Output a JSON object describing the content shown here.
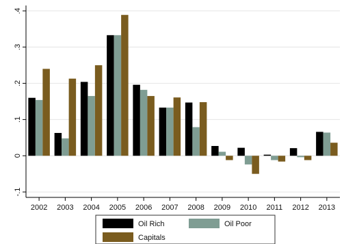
{
  "chart_data": {
    "type": "bar",
    "categories": [
      "2002",
      "2003",
      "2004",
      "2005",
      "2006",
      "2007",
      "2008",
      "2009",
      "2010",
      "2011",
      "2012",
      "2013"
    ],
    "series": [
      {
        "name": "Oil Rich",
        "color": "#000000",
        "values": [
          0.16,
          0.063,
          0.204,
          0.333,
          0.196,
          0.133,
          0.147,
          0.027,
          0.022,
          0.003,
          0.021,
          0.066
        ]
      },
      {
        "name": "Oil Poor",
        "color": "#7f9d93",
        "values": [
          0.154,
          0.048,
          0.165,
          0.333,
          0.182,
          0.133,
          0.079,
          0.011,
          -0.024,
          -0.012,
          -0.004,
          0.064
        ]
      },
      {
        "name": "Capitals",
        "color": "#7a5c1f",
        "values": [
          0.24,
          0.213,
          0.25,
          0.389,
          0.165,
          0.161,
          0.148,
          -0.012,
          -0.05,
          -0.016,
          -0.012,
          0.036
        ]
      }
    ],
    "y_ticks": [
      {
        "value": -0.1,
        "label": "-.1"
      },
      {
        "value": 0,
        "label": "0"
      },
      {
        "value": 0.1,
        "label": ".1"
      },
      {
        "value": 0.2,
        "label": ".2"
      },
      {
        "value": 0.3,
        "label": ".3"
      },
      {
        "value": 0.4,
        "label": ".4"
      }
    ],
    "ylim": [
      -0.115,
      0.415
    ],
    "grid": true,
    "legend_position": "bottom",
    "title": "",
    "xlabel": "",
    "ylabel": ""
  }
}
